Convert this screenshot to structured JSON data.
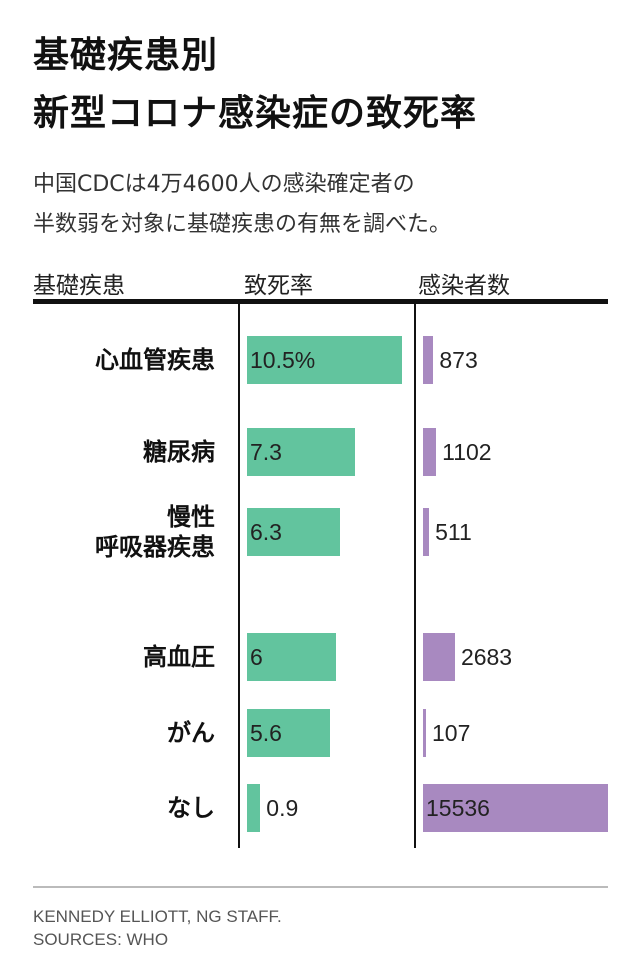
{
  "chart_data": {
    "type": "bar",
    "title": [
      "基礎疾患別",
      "新型コロナ感染症の致死率"
    ],
    "subtitle": [
      "中国CDCは4万4600人の感染確定者の",
      "半数弱を対象に基礎疾患の有無を調べた。"
    ],
    "column_headers": [
      "基礎疾患",
      "致死率",
      "感染者数"
    ],
    "categories": [
      "心血管疾患",
      "糖尿病",
      "慢性\n呼吸器疾患",
      "高血圧",
      "がん",
      "なし"
    ],
    "series": [
      {
        "name": "致死率",
        "values": [
          10.5,
          7.3,
          6.3,
          6,
          5.6,
          0.9
        ],
        "labels": [
          "10.5%",
          "7.3",
          "6.3",
          "6",
          "5.6",
          "0.9"
        ],
        "color": "#62c49e",
        "xlim": [
          0,
          10.5
        ]
      },
      {
        "name": "感染者数",
        "values": [
          873,
          1102,
          511,
          2683,
          107,
          15536
        ],
        "labels": [
          "873",
          "1102",
          "511",
          "2683",
          "107",
          "15536"
        ],
        "color": "#a889c0",
        "xlim": [
          0,
          15536
        ]
      }
    ]
  },
  "footer": {
    "credit": "KENNEDY ELLIOTT, NG STAFF.",
    "sources": "SOURCES: WHO"
  }
}
